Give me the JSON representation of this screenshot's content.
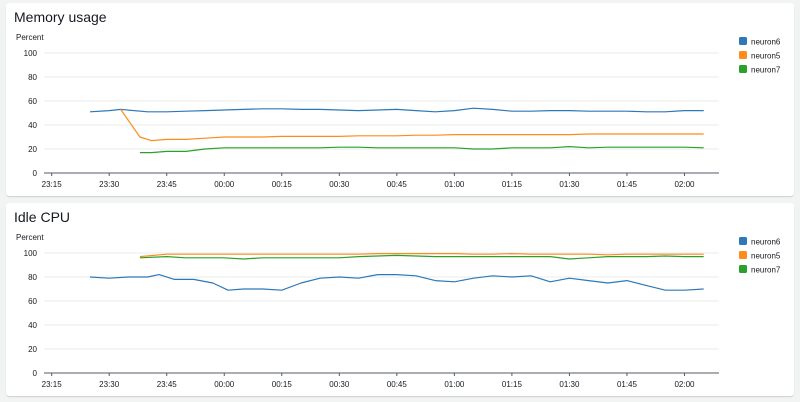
{
  "colors": {
    "neuron6": "#2e78b7",
    "neuron5": "#ff8c1a",
    "neuron7": "#2ca02c",
    "grid": "#eaeded",
    "axis": "#545b64"
  },
  "panels": [
    {
      "title": "Memory usage"
    },
    {
      "title": "Idle CPU"
    }
  ],
  "chart_data": [
    {
      "type": "line",
      "title": "Memory usage",
      "ylabel": "Percent",
      "ylim": [
        0,
        100
      ],
      "yticks": [
        0,
        20,
        40,
        60,
        80,
        100
      ],
      "xlim": [
        "23:13",
        "02:09"
      ],
      "xticks": [
        "23:15",
        "23:30",
        "23:45",
        "00:00",
        "00:15",
        "00:30",
        "00:45",
        "01:00",
        "01:15",
        "01:30",
        "01:45",
        "02:00"
      ],
      "grid": true,
      "legend_position": "right",
      "series": [
        {
          "name": "neuron6",
          "x": [
            "23:25",
            "23:30",
            "23:33",
            "23:40",
            "23:45",
            "23:50",
            "23:55",
            "00:00",
            "00:05",
            "00:10",
            "00:15",
            "00:20",
            "00:25",
            "00:30",
            "00:35",
            "00:40",
            "00:45",
            "00:50",
            "00:55",
            "01:00",
            "01:05",
            "01:10",
            "01:15",
            "01:20",
            "01:25",
            "01:30",
            "01:35",
            "01:40",
            "01:45",
            "01:50",
            "01:55",
            "02:00",
            "02:05"
          ],
          "values": [
            51,
            52,
            53,
            51,
            51,
            51.5,
            52,
            52.5,
            53,
            53.5,
            53.5,
            53,
            53,
            52.5,
            52,
            52.5,
            53,
            52,
            51,
            52,
            54,
            53,
            51.5,
            51.5,
            52,
            52,
            51.5,
            51.5,
            51.5,
            51,
            51,
            52,
            52
          ]
        },
        {
          "name": "neuron5",
          "x": [
            "23:33",
            "23:38",
            "23:41",
            "23:45",
            "23:50",
            "23:55",
            "00:00",
            "00:05",
            "00:10",
            "00:15",
            "00:20",
            "00:25",
            "00:30",
            "00:35",
            "00:40",
            "00:45",
            "00:50",
            "00:55",
            "01:00",
            "01:05",
            "01:10",
            "01:15",
            "01:20",
            "01:25",
            "01:30",
            "01:35",
            "01:40",
            "01:45",
            "01:50",
            "01:55",
            "02:00",
            "02:05"
          ],
          "values": [
            53,
            30,
            27,
            28,
            28,
            29,
            30,
            30,
            30,
            30.5,
            30.5,
            30.5,
            30.5,
            31,
            31,
            31,
            31.5,
            31.5,
            32,
            32,
            32,
            32,
            32,
            32,
            32,
            32.5,
            32.5,
            32.5,
            32.5,
            32.5,
            32.5,
            32.5
          ]
        },
        {
          "name": "neuron7",
          "x": [
            "23:38",
            "23:41",
            "23:45",
            "23:50",
            "23:55",
            "00:00",
            "00:05",
            "00:10",
            "00:15",
            "00:20",
            "00:25",
            "00:30",
            "00:35",
            "00:40",
            "00:45",
            "00:50",
            "00:55",
            "01:00",
            "01:05",
            "01:10",
            "01:15",
            "01:20",
            "01:25",
            "01:30",
            "01:35",
            "01:40",
            "01:45",
            "01:50",
            "01:55",
            "02:00",
            "02:05"
          ],
          "values": [
            17,
            17,
            18,
            18,
            20,
            21,
            21,
            21,
            21,
            21,
            21,
            21.5,
            21.5,
            21,
            21,
            21,
            21,
            21,
            20,
            20,
            21,
            21,
            21,
            22,
            21,
            21.5,
            21.5,
            21.5,
            21.5,
            21.5,
            21
          ]
        }
      ]
    },
    {
      "type": "line",
      "title": "Idle CPU",
      "ylabel": "Percent",
      "ylim": [
        0,
        100
      ],
      "yticks": [
        0,
        20,
        40,
        60,
        80,
        100
      ],
      "xlim": [
        "23:13",
        "02:09"
      ],
      "xticks": [
        "23:15",
        "23:30",
        "23:45",
        "00:00",
        "00:15",
        "00:30",
        "00:45",
        "01:00",
        "01:15",
        "01:30",
        "01:45",
        "02:00"
      ],
      "grid": true,
      "legend_position": "right",
      "series": [
        {
          "name": "neuron6",
          "x": [
            "23:25",
            "23:30",
            "23:35",
            "23:40",
            "23:43",
            "23:47",
            "23:52",
            "23:57",
            "00:01",
            "00:05",
            "00:10",
            "00:15",
            "00:20",
            "00:25",
            "00:30",
            "00:35",
            "00:40",
            "00:45",
            "00:50",
            "00:55",
            "01:00",
            "01:05",
            "01:10",
            "01:15",
            "01:20",
            "01:25",
            "01:30",
            "01:35",
            "01:40",
            "01:45",
            "01:50",
            "01:55",
            "02:00",
            "02:05"
          ],
          "values": [
            80,
            79,
            80,
            80,
            82,
            78,
            78,
            75,
            69,
            70,
            70,
            69,
            75,
            79,
            80,
            79,
            82,
            82,
            81,
            77,
            76,
            79,
            81,
            80,
            81,
            76,
            79,
            77,
            75,
            77,
            73,
            69,
            69,
            70
          ]
        },
        {
          "name": "neuron5",
          "x": [
            "23:38",
            "23:45",
            "23:50",
            "23:55",
            "00:00",
            "00:05",
            "00:10",
            "00:15",
            "00:20",
            "00:25",
            "00:30",
            "00:35",
            "00:40",
            "00:45",
            "00:50",
            "00:55",
            "01:00",
            "01:05",
            "01:10",
            "01:15",
            "01:20",
            "01:25",
            "01:30",
            "01:35",
            "01:40",
            "01:45",
            "01:50",
            "01:55",
            "02:00",
            "02:05"
          ],
          "values": [
            97,
            99,
            99,
            99,
            99,
            99,
            99,
            99,
            99,
            99,
            99,
            99,
            99.5,
            99.5,
            99.5,
            99.5,
            99.5,
            99,
            99,
            99.5,
            99,
            99,
            99,
            99,
            98.5,
            99,
            99,
            99,
            99,
            99
          ]
        },
        {
          "name": "neuron7",
          "x": [
            "23:38",
            "23:45",
            "23:50",
            "23:55",
            "00:00",
            "00:05",
            "00:10",
            "00:15",
            "00:20",
            "00:25",
            "00:30",
            "00:35",
            "00:40",
            "00:45",
            "00:50",
            "00:55",
            "01:00",
            "01:05",
            "01:10",
            "01:15",
            "01:20",
            "01:25",
            "01:30",
            "01:35",
            "01:40",
            "01:45",
            "01:50",
            "01:55",
            "02:00",
            "02:05"
          ],
          "values": [
            96,
            97,
            96,
            96,
            96,
            95,
            96,
            96,
            96,
            96,
            96,
            97,
            97.5,
            98,
            97.5,
            97,
            97,
            97,
            97,
            97,
            97,
            97,
            95,
            96,
            97,
            97,
            97,
            97.5,
            97,
            97
          ]
        }
      ]
    }
  ]
}
